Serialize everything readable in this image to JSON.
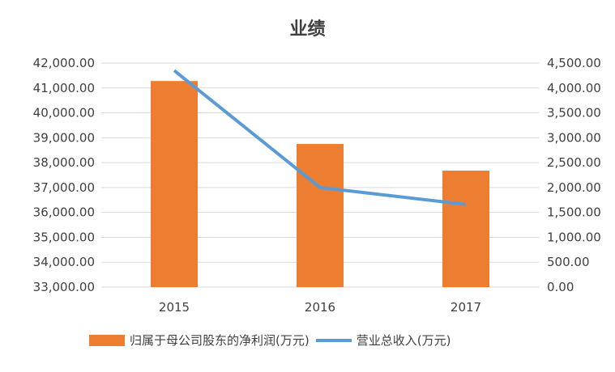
{
  "chart_data": {
    "type": "bar",
    "title": "业绩",
    "categories": [
      "2015",
      "2016",
      "2017"
    ],
    "series": [
      {
        "name": "归属于母公司股东的净利润(万元)",
        "type": "bar",
        "axis": "left",
        "values": [
          41280,
          38750,
          37680
        ],
        "color": "#ED7D31"
      },
      {
        "name": "营业总收入(万元)",
        "type": "line",
        "axis": "right",
        "values": [
          4350,
          2000,
          1660
        ],
        "color": "#5B9BD5"
      }
    ],
    "y_left": {
      "min": 33000,
      "max": 42000,
      "step": 1000,
      "ticks": [
        "33,000.00",
        "34,000.00",
        "35,000.00",
        "36,000.00",
        "37,000.00",
        "38,000.00",
        "39,000.00",
        "40,000.00",
        "41,000.00",
        "42,000.00"
      ]
    },
    "y_right": {
      "min": 0,
      "max": 4500,
      "step": 500,
      "ticks": [
        "0.00",
        "500.00",
        "1,000.00",
        "1,500.00",
        "2,000.00",
        "2,500.00",
        "3,000.00",
        "3,500.00",
        "4,000.00",
        "4,500.00"
      ]
    },
    "grid": true,
    "legend": "bottom"
  }
}
